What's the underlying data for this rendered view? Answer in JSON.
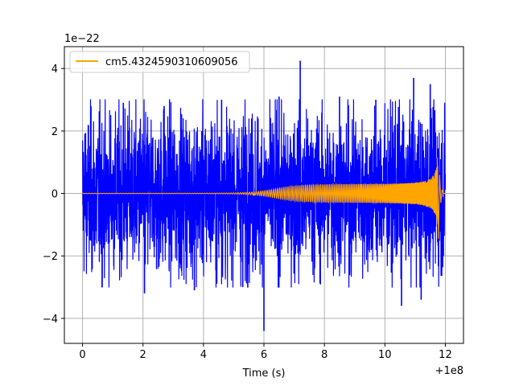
{
  "chart_data": {
    "type": "line",
    "title": "",
    "xlabel": "Time (s)",
    "ylabel": "",
    "x_offset_label": "+1e8",
    "y_scale_label": "1e−22",
    "xlim": [
      -0.6,
      12.6
    ],
    "ylim": [
      -4.8,
      4.7
    ],
    "x_ticks": [
      0,
      2,
      4,
      6,
      8,
      10,
      12
    ],
    "x_tick_labels": [
      "0",
      "2",
      "4",
      "6",
      "8",
      "10",
      "12"
    ],
    "y_ticks": [
      4,
      2,
      0,
      -2,
      -4
    ],
    "y_tick_labels": [
      "4",
      "2",
      "0",
      "−2",
      "−4"
    ],
    "grid": true,
    "legend_position": "upper-left",
    "series": [
      {
        "name": "",
        "kind": "noise-band",
        "color": "#0000ff",
        "x_range": [
          0,
          12
        ],
        "amplitude": 1.9,
        "spikes": [
          [
            7.2,
            4.25
          ],
          [
            6.0,
            -4.4
          ],
          [
            10.55,
            -3.6
          ],
          [
            10.95,
            3.7
          ],
          [
            11.2,
            -3.4
          ],
          [
            2.05,
            -3.2
          ],
          [
            0.65,
            -3.0
          ],
          [
            9.7,
            3.0
          ],
          [
            4.6,
            3.0
          ],
          [
            1.35,
            2.9
          ],
          [
            5.3,
            -3.0
          ],
          [
            8.5,
            3.1
          ],
          [
            3.7,
            -3.1
          ],
          [
            11.5,
            3.5
          ],
          [
            2.7,
            2.8
          ],
          [
            6.5,
            3.1
          ]
        ]
      },
      {
        "name": "cm5.4324590310609056",
        "kind": "chirp",
        "color": "#ffa500",
        "x_range": [
          0,
          12
        ],
        "t_merge": 11.75,
        "peak_amplitude": 1.15,
        "ringdown_min": -1.45
      }
    ]
  }
}
